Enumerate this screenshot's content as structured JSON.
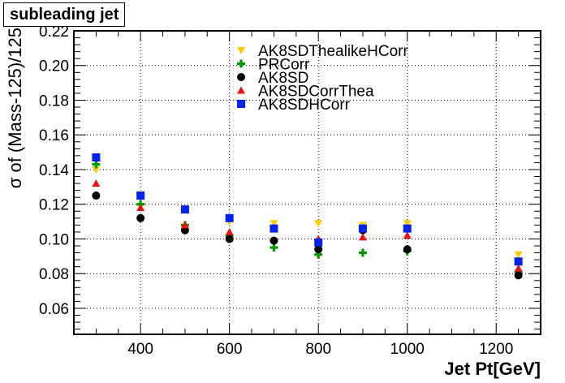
{
  "chart_data": {
    "type": "scatter",
    "title": "subleading jet",
    "xlabel": "Jet Pt[GeV]",
    "ylabel": "σ of (Mass-125)/125",
    "xlim": [
      250,
      1300
    ],
    "ylim": [
      0.045,
      0.22
    ],
    "xticks": [
      400,
      600,
      800,
      1000,
      1200
    ],
    "yticks": [
      0.06,
      0.08,
      0.1,
      0.12,
      0.14,
      0.16,
      0.18,
      0.2,
      0.22
    ],
    "ytick_labels": [
      "0.06",
      "0.08",
      "0.10",
      "0.12",
      "0.14",
      "0.16",
      "0.18",
      "0.20",
      "0.22"
    ],
    "grid": true,
    "legend_position": "top-center",
    "x": [
      300,
      400,
      500,
      600,
      700,
      800,
      900,
      1000,
      1250
    ],
    "series": [
      {
        "name": "AK8SDThealikeHCorr",
        "marker": "triangle-down",
        "color": "#ffcc00",
        "values": [
          0.14,
          0.119,
          0.117,
          0.11,
          0.109,
          0.109,
          0.108,
          0.109,
          0.091
        ]
      },
      {
        "name": "PRCorr",
        "marker": "cross",
        "color": "#009900",
        "values": [
          0.143,
          0.12,
          0.108,
          0.102,
          0.095,
          0.091,
          0.092,
          0.093,
          0.081
        ]
      },
      {
        "name": "AK8SD",
        "marker": "circle",
        "color": "#000000",
        "values": [
          0.125,
          0.112,
          0.105,
          0.1,
          0.099,
          0.094,
          0.105,
          0.094,
          0.079
        ]
      },
      {
        "name": "AK8SDCorrThea",
        "marker": "triangle-up",
        "color": "#ee1111",
        "values": [
          0.132,
          0.118,
          0.108,
          0.104,
          0.106,
          0.1,
          0.101,
          0.102,
          0.083
        ]
      },
      {
        "name": "AK8SDHCorr",
        "marker": "square",
        "color": "#0022ee",
        "values": [
          0.147,
          0.125,
          0.117,
          0.112,
          0.106,
          0.098,
          0.106,
          0.106,
          0.087
        ]
      }
    ]
  }
}
